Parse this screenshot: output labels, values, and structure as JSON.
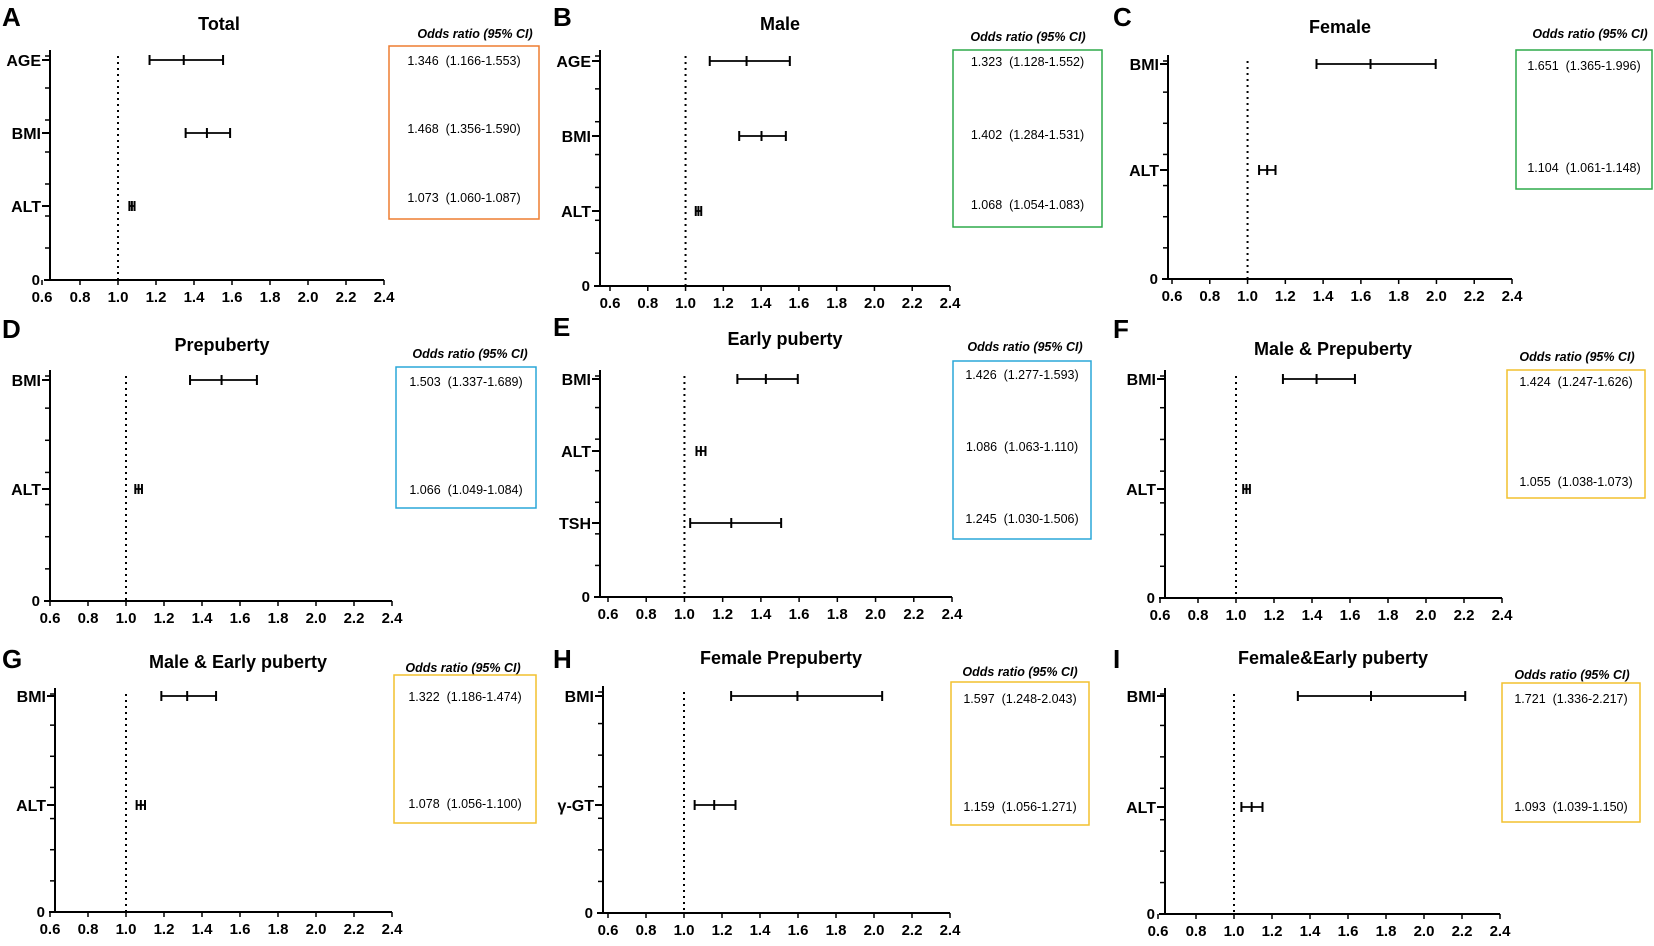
{
  "chart_data": [
    {
      "type": "forest",
      "panel": "A",
      "title": "Total",
      "xlim": [
        0.6,
        2.4
      ],
      "xticks": [
        "0.6",
        "0.8",
        "1.0",
        "1.2",
        "1.4",
        "1.6",
        "1.8",
        "2.0",
        "2.2",
        "2.4"
      ],
      "y_zero_label": "0",
      "box_header": "Odds ratio (95% CI)",
      "box_color": "#ED7D31",
      "rows": [
        {
          "label": "AGE",
          "or": 1.346,
          "low": 1.166,
          "high": 1.553,
          "text": "1.346  (1.166-1.553)"
        },
        {
          "label": "BMI",
          "or": 1.468,
          "low": 1.356,
          "high": 1.59,
          "text": "1.468  (1.356-1.590)"
        },
        {
          "label": "ALT",
          "or": 1.073,
          "low": 1.06,
          "high": 1.087,
          "text": "1.073  (1.060-1.087)"
        }
      ]
    },
    {
      "type": "forest",
      "panel": "B",
      "title": "Male",
      "xlim": [
        0.6,
        2.4
      ],
      "xticks": [
        "0.6",
        "0.8",
        "1.0",
        "1.2",
        "1.4",
        "1.6",
        "1.8",
        "2.0",
        "2.2",
        "2.4"
      ],
      "y_zero_label": "0",
      "box_header": "Odds ratio (95% CI)",
      "box_color": "#2EAA4A",
      "rows": [
        {
          "label": "AGE",
          "or": 1.323,
          "low": 1.128,
          "high": 1.552,
          "text": "1.323  (1.128-1.552)"
        },
        {
          "label": "BMI",
          "or": 1.402,
          "low": 1.284,
          "high": 1.531,
          "text": "1.402  (1.284-1.531)"
        },
        {
          "label": "ALT",
          "or": 1.068,
          "low": 1.054,
          "high": 1.083,
          "text": "1.068  (1.054-1.083)"
        }
      ]
    },
    {
      "type": "forest",
      "panel": "C",
      "title": "Female",
      "xlim": [
        0.6,
        2.4
      ],
      "xticks": [
        "0.6",
        "0.8",
        "1.0",
        "1.2",
        "1.4",
        "1.6",
        "1.8",
        "2.0",
        "2.2",
        "2.4"
      ],
      "y_zero_label": "0",
      "box_header": "Odds ratio (95% CI)",
      "box_color": "#2EAA4A",
      "rows": [
        {
          "label": "BMI",
          "or": 1.651,
          "low": 1.365,
          "high": 1.996,
          "text": "1.651  (1.365-1.996)"
        },
        {
          "label": "ALT",
          "or": 1.104,
          "low": 1.061,
          "high": 1.148,
          "text": "1.104  (1.061-1.148)"
        }
      ]
    },
    {
      "type": "forest",
      "panel": "D",
      "title": "Prepuberty",
      "xlim": [
        0.6,
        2.4
      ],
      "xticks": [
        "0.6",
        "0.8",
        "1.0",
        "1.2",
        "1.4",
        "1.6",
        "1.8",
        "2.0",
        "2.2",
        "2.4"
      ],
      "y_zero_label": "0",
      "box_header": "Odds ratio (95% CI)",
      "box_color": "#2AA7D8",
      "rows": [
        {
          "label": "BMI",
          "or": 1.503,
          "low": 1.337,
          "high": 1.689,
          "text": "1.503  (1.337-1.689)"
        },
        {
          "label": "ALT",
          "or": 1.066,
          "low": 1.049,
          "high": 1.084,
          "text": "1.066  (1.049-1.084)"
        }
      ]
    },
    {
      "type": "forest",
      "panel": "E",
      "title": "Early puberty",
      "xlim": [
        0.6,
        2.4
      ],
      "xticks": [
        "0.6",
        "0.8",
        "1.0",
        "1.2",
        "1.4",
        "1.6",
        "1.8",
        "2.0",
        "2.2",
        "2.4"
      ],
      "y_zero_label": "0",
      "box_header": "Odds ratio (95% CI)",
      "box_color": "#2AA7D8",
      "rows": [
        {
          "label": "BMI",
          "or": 1.426,
          "low": 1.277,
          "high": 1.593,
          "text": "1.426  (1.277-1.593)"
        },
        {
          "label": "ALT",
          "or": 1.086,
          "low": 1.063,
          "high": 1.11,
          "text": "1.086  (1.063-1.110)"
        },
        {
          "label": "TSH",
          "or": 1.245,
          "low": 1.03,
          "high": 1.506,
          "text": "1.245  (1.030-1.506)"
        }
      ]
    },
    {
      "type": "forest",
      "panel": "F",
      "title": "Male & Prepuberty",
      "xlim": [
        0.6,
        2.4
      ],
      "xticks": [
        "0.6",
        "0.8",
        "1.0",
        "1.2",
        "1.4",
        "1.6",
        "1.8",
        "2.0",
        "2.2",
        "2.4"
      ],
      "y_zero_label": "0",
      "box_header": "Odds ratio (95% CI)",
      "box_color": "#F2C12E",
      "rows": [
        {
          "label": "BMI",
          "or": 1.424,
          "low": 1.247,
          "high": 1.626,
          "text": "1.424  (1.247-1.626)"
        },
        {
          "label": "ALT",
          "or": 1.055,
          "low": 1.038,
          "high": 1.073,
          "text": "1.055  (1.038-1.073)"
        }
      ]
    },
    {
      "type": "forest",
      "panel": "G",
      "title": "Male & Early puberty",
      "xlim": [
        0.6,
        2.4
      ],
      "xticks": [
        "0.6",
        "0.8",
        "1.0",
        "1.2",
        "1.4",
        "1.6",
        "1.8",
        "2.0",
        "2.2",
        "2.4"
      ],
      "y_zero_label": "0",
      "box_header": "Odds ratio (95% CI)",
      "box_color": "#F2C12E",
      "rows": [
        {
          "label": "BMI",
          "or": 1.322,
          "low": 1.186,
          "high": 1.474,
          "text": "1.322  (1.186-1.474)"
        },
        {
          "label": "ALT",
          "or": 1.078,
          "low": 1.056,
          "high": 1.1,
          "text": "1.078  (1.056-1.100)"
        }
      ]
    },
    {
      "type": "forest",
      "panel": "H",
      "title": "Female Prepuberty",
      "xlim": [
        0.6,
        2.4
      ],
      "xticks": [
        "0.6",
        "0.8",
        "1.0",
        "1.2",
        "1.4",
        "1.6",
        "1.8",
        "2.0",
        "2.2",
        "2.4"
      ],
      "y_zero_label": "0",
      "box_header": "Odds ratio (95% CI)",
      "box_color": "#F2C12E",
      "rows": [
        {
          "label": "BMI",
          "or": 1.597,
          "low": 1.248,
          "high": 2.043,
          "text": "1.597  (1.248-2.043)"
        },
        {
          "label": "γ-GT",
          "or": 1.159,
          "low": 1.056,
          "high": 1.271,
          "text": "1.159  (1.056-1.271)"
        }
      ]
    },
    {
      "type": "forest",
      "panel": "I",
      "title": "Female&Early puberty",
      "xlim": [
        0.6,
        2.4
      ],
      "xticks": [
        "0.6",
        "0.8",
        "1.0",
        "1.2",
        "1.4",
        "1.6",
        "1.8",
        "2.0",
        "2.2",
        "2.4"
      ],
      "y_zero_label": "0",
      "box_header": "Odds ratio (95% CI)",
      "box_color": "#F2C12E",
      "rows": [
        {
          "label": "BMI",
          "or": 1.721,
          "low": 1.336,
          "high": 2.217,
          "text": "1.721  (1.336-2.217)"
        },
        {
          "label": "ALT",
          "or": 1.093,
          "low": 1.039,
          "high": 1.15,
          "text": "1.093  (1.039-1.150)"
        }
      ]
    }
  ]
}
